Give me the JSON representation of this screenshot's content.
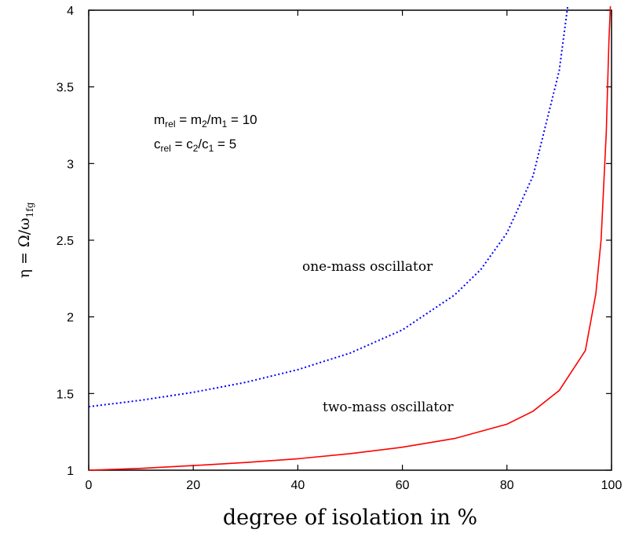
{
  "chart_data": {
    "type": "line",
    "xlabel": "degree of isolation in %",
    "ylabel": {
      "main": "η = Ω/ω",
      "sub": "1fg"
    },
    "xlim": [
      0,
      100
    ],
    "ylim": [
      1,
      4
    ],
    "xticks": [
      "0",
      "20",
      "40",
      "60",
      "80",
      "100"
    ],
    "yticks": [
      "1",
      "1.5",
      "2",
      "2.5",
      "3",
      "3.5",
      "4"
    ],
    "grid": false,
    "parameters": [
      {
        "prefix": "m",
        "prefix_sub": "rel",
        "mid": " = m",
        "mid_sub": "2",
        "slash": "/m",
        "slash_sub": "1",
        "tail": " = 10"
      },
      {
        "prefix": "c",
        "prefix_sub": "rel",
        "mid": " =  c",
        "mid_sub": "2",
        "slash": "/c",
        "slash_sub": "1",
        "tail": "  =   5"
      }
    ],
    "series": [
      {
        "name": "one-mass oscillator",
        "color": "#0000ff",
        "style": "dotted",
        "x": [
          0,
          10,
          20,
          30,
          40,
          50,
          60,
          70,
          75,
          80,
          85,
          90,
          92,
          93.3
        ],
        "y": [
          1.414,
          1.456,
          1.508,
          1.573,
          1.656,
          1.764,
          1.915,
          2.143,
          2.309,
          2.547,
          2.92,
          3.606,
          4.123,
          4.62
        ]
      },
      {
        "name": "two-mass oscillator",
        "color": "#ff0000",
        "style": "solid",
        "x": [
          0,
          10,
          20,
          30,
          40,
          50,
          60,
          70,
          80,
          85,
          90,
          95,
          97,
          98,
          99,
          99.5,
          100
        ],
        "y": [
          1.0,
          1.012,
          1.03,
          1.05,
          1.075,
          1.108,
          1.15,
          1.207,
          1.3,
          1.385,
          1.52,
          1.78,
          2.15,
          2.5,
          3.2,
          3.8,
          4.2
        ]
      }
    ],
    "annotations": [
      "one-mass oscillator",
      "two-mass oscillator"
    ]
  }
}
